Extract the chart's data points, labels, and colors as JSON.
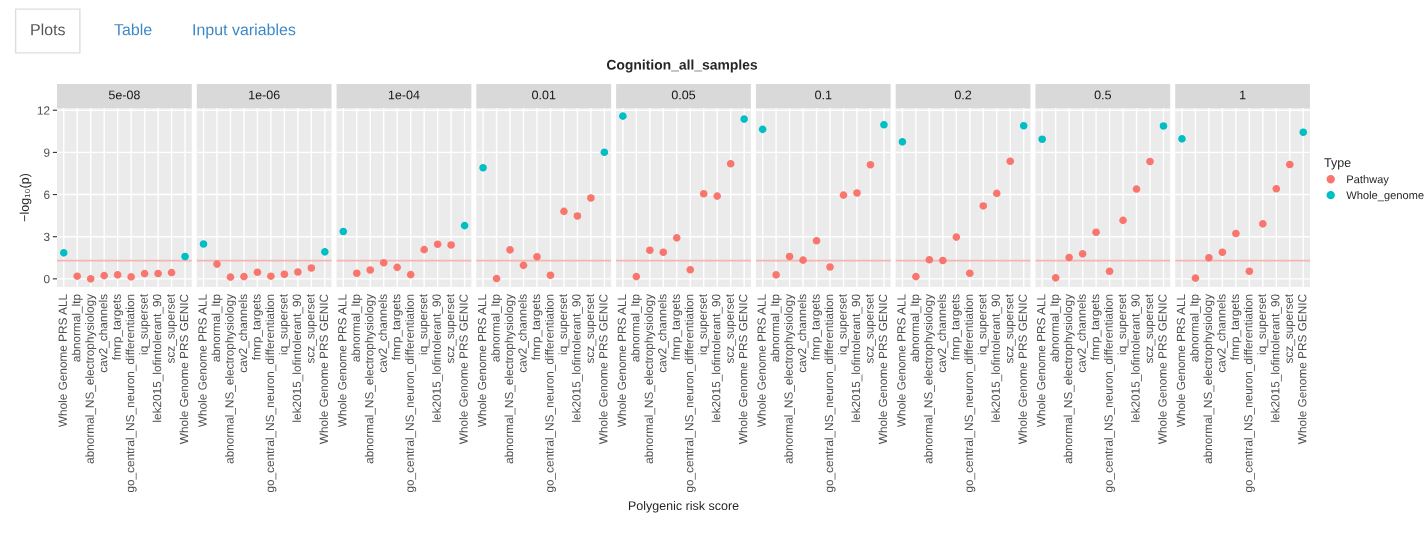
{
  "chart_data": [
    {
      "type": "scatter",
      "title": "5e-08",
      "ylabel": "−log₁₀(p)",
      "annotations": [
        "Plots",
        "Table",
        "Input variables",
        "Cognition_all_samples"
      ],
      "categories": [
        "Whole Genome PRS ALL",
        "abnormal_ltp",
        "abnormal_NS_electrophysiology",
        "cav2_channels",
        "fmrp_targets",
        "go_central_NS_neuron_differentiation",
        "iq_superset",
        "lek2015_lofintolerant_90",
        "scz_superset",
        "Whole Genome PRS GENIC"
      ],
      "series": [
        {
          "color": "#f8766d",
          "values": [
            null,
            0.19,
            0.0,
            0.23,
            0.28,
            0.14,
            0.37,
            0.38,
            0.44,
            null
          ]
        },
        {
          "color": "#00bfc4",
          "values": [
            1.85,
            null,
            null,
            null,
            null,
            null,
            null,
            null,
            null,
            1.59
          ]
        }
      ],
      "ylim": [
        -0.58,
        12.16
      ],
      "yticks": [
        0,
        3,
        6,
        9,
        12
      ],
      "grid": true,
      "marker": "circle",
      "ref_lines": [
        {
          "axis": "y",
          "value": 1.3,
          "color": "#f4b6b2"
        }
      ]
    },
    {
      "type": "scatter",
      "title": "1e-06",
      "tick_labels": "x",
      "categories": [
        "Whole Genome PRS ALL",
        "abnormal_ltp",
        "abnormal_NS_electrophysiology",
        "cav2_channels",
        "fmrp_targets",
        "go_central_NS_neuron_differentiation",
        "iq_superset",
        "lek2015_lofintolerant_90",
        "scz_superset",
        "Whole Genome PRS GENIC"
      ],
      "series": [
        {
          "color": "#f8766d",
          "values": [
            null,
            1.05,
            0.12,
            0.16,
            0.47,
            0.19,
            0.33,
            0.49,
            0.77,
            null
          ]
        },
        {
          "color": "#00bfc4",
          "values": [
            2.48,
            null,
            null,
            null,
            null,
            null,
            null,
            null,
            null,
            1.92
          ]
        }
      ],
      "ylim": [
        -0.58,
        12.16
      ],
      "yticks": [
        0,
        3,
        6,
        9,
        12
      ],
      "grid": true,
      "marker": "circle",
      "ref_lines": [
        {
          "axis": "y",
          "value": 1.3,
          "color": "#f4b6b2"
        }
      ]
    },
    {
      "type": "scatter",
      "title": "1e-04",
      "tick_labels": "x",
      "categories": [
        "Whole Genome PRS ALL",
        "abnormal_ltp",
        "abnormal_NS_electrophysiology",
        "cav2_channels",
        "fmrp_targets",
        "go_central_NS_neuron_differentiation",
        "iq_superset",
        "lek2015_lofintolerant_90",
        "scz_superset",
        "Whole Genome PRS GENIC"
      ],
      "series": [
        {
          "color": "#f8766d",
          "values": [
            null,
            0.4,
            0.63,
            1.15,
            0.82,
            0.3,
            2.08,
            2.46,
            2.41,
            null
          ]
        },
        {
          "color": "#00bfc4",
          "values": [
            3.37,
            null,
            null,
            null,
            null,
            null,
            null,
            null,
            null,
            3.79
          ]
        }
      ],
      "ylim": [
        -0.58,
        12.16
      ],
      "yticks": [
        0,
        3,
        6,
        9,
        12
      ],
      "grid": true,
      "marker": "circle",
      "ref_lines": [
        {
          "axis": "y",
          "value": 1.3,
          "color": "#f4b6b2"
        }
      ]
    },
    {
      "type": "scatter",
      "title": "0.01",
      "tick_labels": "x",
      "categories": [
        "Whole Genome PRS ALL",
        "abnormal_ltp",
        "abnormal_NS_electrophysiology",
        "cav2_channels",
        "fmrp_targets",
        "go_central_NS_neuron_differentiation",
        "iq_superset",
        "lek2015_lofintolerant_90",
        "scz_superset",
        "Whole Genome PRS GENIC"
      ],
      "series": [
        {
          "color": "#f8766d",
          "values": [
            null,
            0.02,
            2.06,
            0.96,
            1.57,
            0.26,
            4.8,
            4.47,
            5.75,
            null
          ]
        },
        {
          "color": "#00bfc4",
          "values": [
            7.91,
            null,
            null,
            null,
            null,
            null,
            null,
            null,
            null,
            9.01
          ]
        }
      ],
      "ylim": [
        -0.58,
        12.16
      ],
      "yticks": [
        0,
        3,
        6,
        9,
        12
      ],
      "grid": true,
      "marker": "circle",
      "ref_lines": [
        {
          "axis": "y",
          "value": 1.3,
          "color": "#f4b6b2"
        }
      ]
    },
    {
      "type": "scatter",
      "title": "0.05",
      "xlabel": "Polygenic risk score",
      "tick_labels": "x",
      "categories": [
        "Whole Genome PRS ALL",
        "abnormal_ltp",
        "abnormal_NS_electrophysiology",
        "cav2_channels",
        "fmrp_targets",
        "go_central_NS_neuron_differentiation",
        "iq_superset",
        "lek2015_lofintolerant_90",
        "scz_superset",
        "Whole Genome PRS GENIC"
      ],
      "series": [
        {
          "color": "#f8766d",
          "values": [
            null,
            0.16,
            2.04,
            1.89,
            2.92,
            0.65,
            6.06,
            5.89,
            8.19,
            null
          ]
        },
        {
          "color": "#00bfc4",
          "values": [
            11.58,
            null,
            null,
            null,
            null,
            null,
            null,
            null,
            null,
            11.37
          ]
        }
      ],
      "ylim": [
        -0.58,
        12.16
      ],
      "yticks": [
        0,
        3,
        6,
        9,
        12
      ],
      "grid": true,
      "marker": "circle",
      "ref_lines": [
        {
          "axis": "y",
          "value": 1.3,
          "color": "#f4b6b2"
        }
      ]
    },
    {
      "type": "scatter",
      "title": "0.1",
      "tick_labels": "x",
      "categories": [
        "Whole Genome PRS ALL",
        "abnormal_ltp",
        "abnormal_NS_electrophysiology",
        "cav2_channels",
        "fmrp_targets",
        "go_central_NS_neuron_differentiation",
        "iq_superset",
        "lek2015_lofintolerant_90",
        "scz_superset",
        "Whole Genome PRS GENIC"
      ],
      "series": [
        {
          "color": "#f8766d",
          "values": [
            null,
            0.28,
            1.59,
            1.33,
            2.71,
            0.84,
            5.96,
            6.11,
            8.12,
            null
          ]
        },
        {
          "color": "#00bfc4",
          "values": [
            10.64,
            null,
            null,
            null,
            null,
            null,
            null,
            null,
            null,
            10.97
          ]
        }
      ],
      "ylim": [
        -0.58,
        12.16
      ],
      "yticks": [
        0,
        3,
        6,
        9,
        12
      ],
      "grid": true,
      "marker": "circle",
      "ref_lines": [
        {
          "axis": "y",
          "value": 1.3,
          "color": "#f4b6b2"
        }
      ]
    },
    {
      "type": "scatter",
      "title": "0.2",
      "tick_labels": "x",
      "categories": [
        "Whole Genome PRS ALL",
        "abnormal_ltp",
        "abnormal_NS_electrophysiology",
        "cav2_channels",
        "fmrp_targets",
        "go_central_NS_neuron_differentiation",
        "iq_superset",
        "lek2015_lofintolerant_90",
        "scz_superset",
        "Whole Genome PRS GENIC"
      ],
      "series": [
        {
          "color": "#f8766d",
          "values": [
            null,
            0.16,
            1.36,
            1.31,
            2.97,
            0.4,
            5.19,
            6.08,
            8.37,
            null
          ]
        },
        {
          "color": "#00bfc4",
          "values": [
            9.75,
            null,
            null,
            null,
            null,
            null,
            null,
            null,
            null,
            10.9
          ]
        }
      ],
      "ylim": [
        -0.58,
        12.16
      ],
      "yticks": [
        0,
        3,
        6,
        9,
        12
      ],
      "grid": true,
      "marker": "circle",
      "ref_lines": [
        {
          "axis": "y",
          "value": 1.3,
          "color": "#f4b6b2"
        }
      ]
    },
    {
      "type": "scatter",
      "title": "0.5",
      "tick_labels": "x",
      "categories": [
        "Whole Genome PRS ALL",
        "abnormal_ltp",
        "abnormal_NS_electrophysiology",
        "cav2_channels",
        "fmrp_targets",
        "go_central_NS_neuron_differentiation",
        "iq_superset",
        "lek2015_lofintolerant_90",
        "scz_superset",
        "Whole Genome PRS GENIC"
      ],
      "series": [
        {
          "color": "#f8766d",
          "values": [
            null,
            0.07,
            1.52,
            1.78,
            3.32,
            0.54,
            4.16,
            6.39,
            8.35,
            null
          ]
        },
        {
          "color": "#00bfc4",
          "values": [
            9.94,
            null,
            null,
            null,
            null,
            null,
            null,
            null,
            null,
            10.88
          ]
        }
      ],
      "ylim": [
        -0.58,
        12.16
      ],
      "yticks": [
        0,
        3,
        6,
        9,
        12
      ],
      "grid": true,
      "marker": "circle",
      "ref_lines": [
        {
          "axis": "y",
          "value": 1.3,
          "color": "#f4b6b2"
        }
      ]
    },
    {
      "type": "scatter",
      "title": "1",
      "tick_labels": "x",
      "legend": "right",
      "legend_title": "Type",
      "categories": [
        "Whole Genome PRS ALL",
        "abnormal_ltp",
        "abnormal_NS_electrophysiology",
        "cav2_channels",
        "fmrp_targets",
        "go_central_NS_neuron_differentiation",
        "iq_superset",
        "lek2015_lofintolerant_90",
        "scz_superset",
        "Whole Genome PRS GENIC"
      ],
      "series": [
        {
          "name": "Pathway",
          "color": "#f8766d",
          "values": [
            null,
            0.05,
            1.5,
            1.89,
            3.23,
            0.54,
            3.91,
            6.41,
            8.14,
            null
          ]
        },
        {
          "name": "Whole_genome",
          "color": "#00bfc4",
          "values": [
            9.96,
            null,
            null,
            null,
            null,
            null,
            null,
            null,
            null,
            10.43
          ]
        }
      ],
      "ylim": [
        -0.58,
        12.16
      ],
      "yticks": [
        0,
        3,
        6,
        9,
        12
      ],
      "grid": true,
      "marker": "circle",
      "ref_lines": [
        {
          "axis": "y",
          "value": 1.3,
          "color": "#f4b6b2"
        }
      ]
    }
  ]
}
